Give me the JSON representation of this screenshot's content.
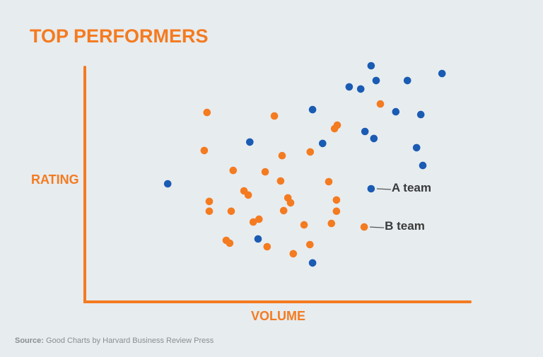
{
  "title": "TOP PERFORMERS",
  "source": {
    "prefix": "Source:",
    "text": "Good Charts by Harvard Business Review Press"
  },
  "colors": {
    "accent": "#f47b20",
    "a_team": "#1a5bb3",
    "b_team": "#f47b20",
    "background": "#e7ecef",
    "legend_text": "#3a3a3a",
    "source_text": "#8a8e92"
  },
  "chart_data": {
    "type": "scatter",
    "title": "TOP PERFORMERS",
    "xlabel": "VOLUME",
    "ylabel": "RATING",
    "xlim": [
      0,
      100
    ],
    "ylim": [
      0,
      100
    ],
    "grid": false,
    "ticks": false,
    "legend_position": "inline-right",
    "series": [
      {
        "name": "A team",
        "color": "#1a5bb3",
        "points": [
          {
            "x": 21.5,
            "y": 50.3
          },
          {
            "x": 42.8,
            "y": 68.1
          },
          {
            "x": 59.1,
            "y": 81.9
          },
          {
            "x": 61.7,
            "y": 67.5
          },
          {
            "x": 44.95,
            "y": 26.8
          },
          {
            "x": 59.1,
            "y": 16.6
          },
          {
            "x": 68.6,
            "y": 91.6
          },
          {
            "x": 71.6,
            "y": 90.7
          },
          {
            "x": 74.3,
            "y": 100.6
          },
          {
            "x": 75.6,
            "y": 94.3
          },
          {
            "x": 83.7,
            "y": 94.3
          },
          {
            "x": 92.7,
            "y": 97.3
          },
          {
            "x": 80.7,
            "y": 81.0
          },
          {
            "x": 87.2,
            "y": 79.8
          },
          {
            "x": 72.7,
            "y": 72.6
          },
          {
            "x": 75.0,
            "y": 69.6
          },
          {
            "x": 86.1,
            "y": 65.7
          },
          {
            "x": 87.7,
            "y": 58.1
          }
        ]
      },
      {
        "name": "B team",
        "color": "#f47b20",
        "points": [
          {
            "x": 31.7,
            "y": 80.7
          },
          {
            "x": 31.0,
            "y": 64.5
          },
          {
            "x": 49.2,
            "y": 79.2
          },
          {
            "x": 38.5,
            "y": 56.0
          },
          {
            "x": 46.8,
            "y": 55.4
          },
          {
            "x": 51.2,
            "y": 62.3
          },
          {
            "x": 50.8,
            "y": 51.5
          },
          {
            "x": 58.5,
            "y": 63.9
          },
          {
            "x": 64.8,
            "y": 73.8
          },
          {
            "x": 65.5,
            "y": 75.3
          },
          {
            "x": 76.7,
            "y": 84.3
          },
          {
            "x": 41.3,
            "y": 47.3
          },
          {
            "x": 42.4,
            "y": 45.5
          },
          {
            "x": 32.3,
            "y": 42.8
          },
          {
            "x": 32.3,
            "y": 38.6
          },
          {
            "x": 37.98,
            "y": 38.6
          },
          {
            "x": 52.7,
            "y": 44.3
          },
          {
            "x": 53.4,
            "y": 42.2
          },
          {
            "x": 51.6,
            "y": 38.9
          },
          {
            "x": 43.7,
            "y": 34.0
          },
          {
            "x": 45.2,
            "y": 35.2
          },
          {
            "x": 63.3,
            "y": 51.2
          },
          {
            "x": 65.3,
            "y": 43.4
          },
          {
            "x": 65.3,
            "y": 38.6
          },
          {
            "x": 64.0,
            "y": 33.4
          },
          {
            "x": 56.9,
            "y": 32.8
          },
          {
            "x": 36.7,
            "y": 26.2
          },
          {
            "x": 37.6,
            "y": 25.0
          },
          {
            "x": 47.3,
            "y": 23.5
          },
          {
            "x": 58.4,
            "y": 24.4
          },
          {
            "x": 54.1,
            "y": 20.5
          }
        ]
      }
    ],
    "legend": [
      {
        "label": "A team",
        "color": "#1a5bb3",
        "marker": {
          "x": 74.3,
          "y": 48.2
        }
      },
      {
        "label": "B team",
        "color": "#f47b20",
        "marker": {
          "x": 72.5,
          "y": 31.9
        }
      }
    ]
  }
}
